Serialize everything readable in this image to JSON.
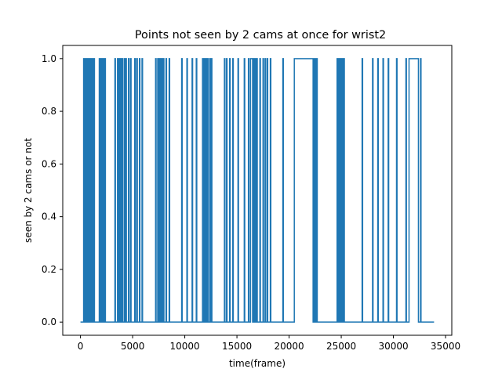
{
  "chart_data": {
    "type": "line",
    "title": "Points not seen by 2 cams at once for wrist2",
    "xlabel": "time(frame)",
    "ylabel": "seen by 2 cams or not",
    "xlim": [
      -1700,
      35600
    ],
    "ylim": [
      -0.05,
      1.05
    ],
    "xticks": [
      0,
      5000,
      10000,
      15000,
      20000,
      25000,
      30000,
      35000
    ],
    "yticks": [
      0.0,
      0.2,
      0.4,
      0.6,
      0.8,
      1.0
    ],
    "xtick_labels": [
      "0",
      "5000",
      "10000",
      "15000",
      "20000",
      "25000",
      "30000",
      "35000"
    ],
    "ytick_labels": [
      "0.0",
      "0.2",
      "0.4",
      "0.6",
      "0.8",
      "1.0"
    ],
    "grid": false,
    "legend": "none",
    "line_color": "#1f77b4",
    "x_end": 33900,
    "series": [
      {
        "values_note_free": true,
        "high_intervals": [
          [
            300,
            380
          ],
          [
            420,
            470
          ],
          [
            520,
            560
          ],
          [
            600,
            640
          ],
          [
            700,
            760
          ],
          [
            820,
            860
          ],
          [
            900,
            950
          ],
          [
            1000,
            1040
          ],
          [
            1100,
            1200
          ],
          [
            1300,
            1340
          ],
          [
            1800,
            1850
          ],
          [
            1900,
            1950
          ],
          [
            2050,
            2100
          ],
          [
            2200,
            2260
          ],
          [
            2350,
            2390
          ],
          [
            3300,
            3350
          ],
          [
            3550,
            3600
          ],
          [
            3700,
            3800
          ],
          [
            3850,
            3900
          ],
          [
            4000,
            4050
          ],
          [
            4200,
            4300
          ],
          [
            4350,
            4400
          ],
          [
            4600,
            4650
          ],
          [
            4800,
            4850
          ],
          [
            5200,
            5260
          ],
          [
            5400,
            5450
          ],
          [
            5650,
            5700
          ],
          [
            5900,
            5950
          ],
          [
            7200,
            7250
          ],
          [
            7400,
            7500
          ],
          [
            7600,
            7650
          ],
          [
            7750,
            7800
          ],
          [
            7900,
            8000
          ],
          [
            8200,
            8250
          ],
          [
            8500,
            8550
          ],
          [
            9700,
            9750
          ],
          [
            10200,
            10250
          ],
          [
            10700,
            10750
          ],
          [
            11100,
            11150
          ],
          [
            11700,
            11800
          ],
          [
            11850,
            11950
          ],
          [
            12000,
            12050
          ],
          [
            12150,
            12250
          ],
          [
            12400,
            12450
          ],
          [
            12550,
            12600
          ],
          [
            13800,
            13850
          ],
          [
            14000,
            14050
          ],
          [
            14300,
            14350
          ],
          [
            14600,
            14650
          ],
          [
            15100,
            15150
          ],
          [
            15700,
            15750
          ],
          [
            16100,
            16150
          ],
          [
            16300,
            16500
          ],
          [
            16550,
            16650
          ],
          [
            16750,
            16800
          ],
          [
            16900,
            16950
          ],
          [
            17200,
            17250
          ],
          [
            17500,
            17550
          ],
          [
            17700,
            17750
          ],
          [
            17900,
            17950
          ],
          [
            18200,
            18250
          ],
          [
            19400,
            19450
          ],
          [
            20500,
            22300
          ],
          [
            22400,
            22450
          ],
          [
            22500,
            22550
          ],
          [
            22650,
            22700
          ],
          [
            24600,
            24650
          ],
          [
            24750,
            24800
          ],
          [
            24850,
            24900
          ],
          [
            24950,
            25000
          ],
          [
            25100,
            25150
          ],
          [
            25250,
            25300
          ],
          [
            27000,
            27050
          ],
          [
            28000,
            28050
          ],
          [
            28500,
            28550
          ],
          [
            29000,
            29050
          ],
          [
            29500,
            29550
          ],
          [
            30300,
            30350
          ],
          [
            31200,
            31250
          ],
          [
            31500,
            32400
          ],
          [
            32600,
            32650
          ]
        ]
      }
    ]
  }
}
